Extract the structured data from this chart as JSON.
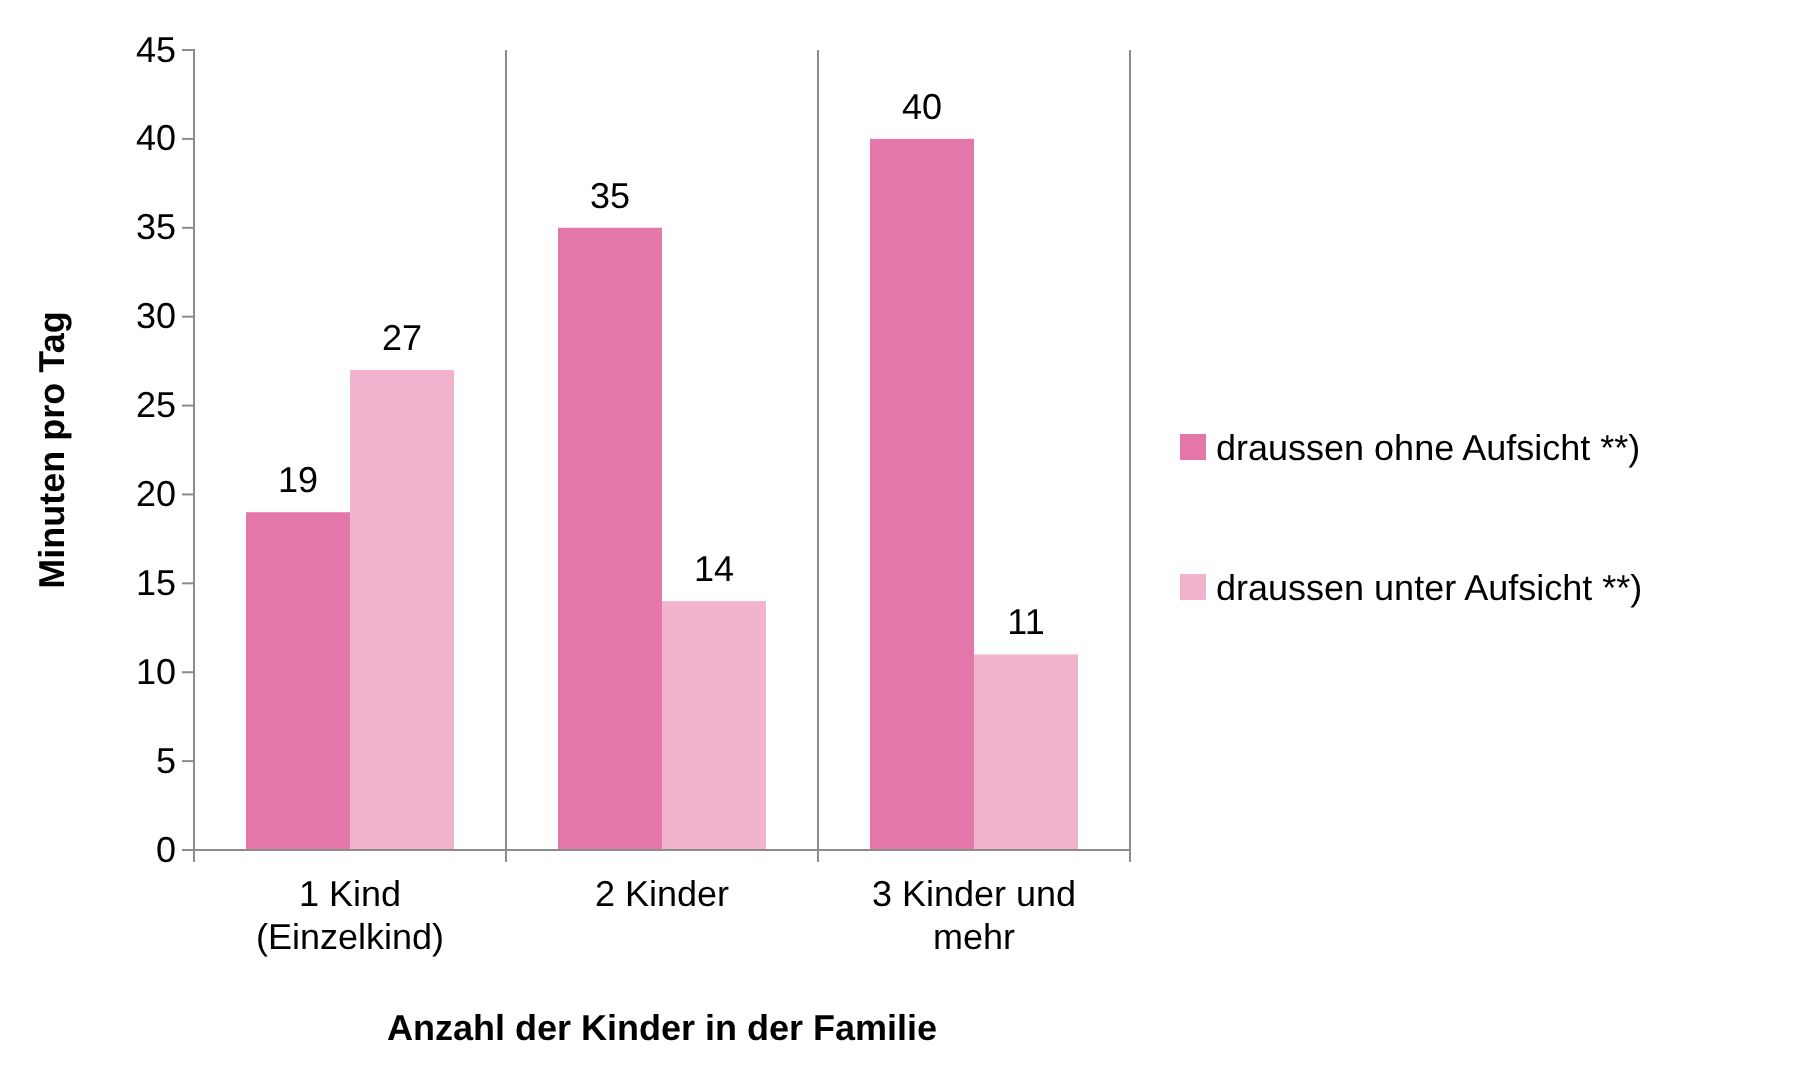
{
  "chart_data": {
    "type": "bar",
    "xlabel": "Anzahl der Kinder in der Familie",
    "ylabel": "Minuten pro Tag",
    "categories": [
      "1 Kind (Einzelkind)",
      "2 Kinder",
      "3 Kinder und mehr"
    ],
    "series": [
      {
        "name": "draussen ohne Aufsicht **)",
        "color": "#e377a9",
        "values": [
          19,
          35,
          40
        ]
      },
      {
        "name": "draussen unter Aufsicht **)",
        "color": "#f2b3cf",
        "values": [
          27,
          14,
          11
        ]
      }
    ],
    "ylim": [
      0,
      45
    ],
    "yticks": [
      0,
      5,
      10,
      15,
      20,
      25,
      30,
      35,
      40,
      45
    ],
    "grid": "x",
    "legend": "right",
    "data_labels": true
  }
}
